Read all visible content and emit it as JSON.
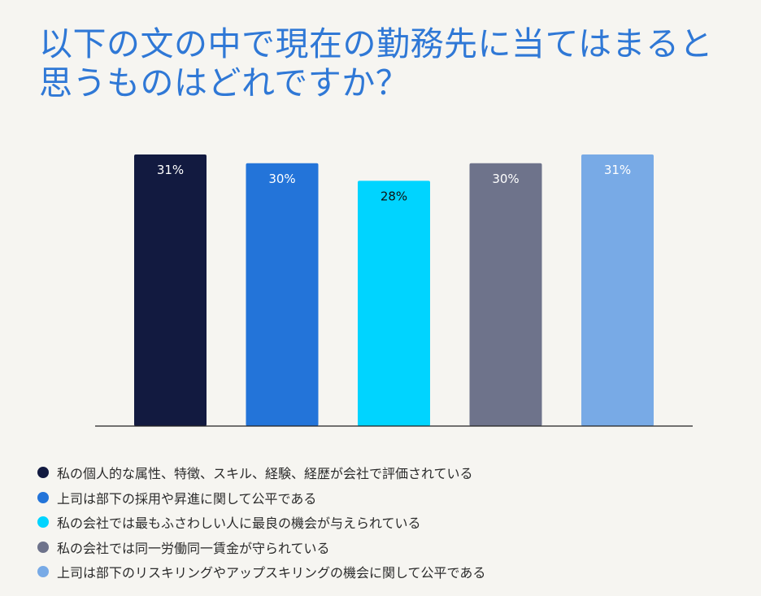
{
  "chart_data": {
    "type": "bar",
    "title": "以下の文の中で現在の勤務先に当てはまると思うものはどれですか？",
    "title_lines": [
      "以下の文の中で現在の勤務先に当てはまると",
      "思うものはどれですか？"
    ],
    "categories": [
      "私の個人的な属性、特徴、スキル、経験、経歴が会社で評価されている",
      "上司は部下の採用や昇進に関して公平である",
      "私の会社では最もふさわしい人に最良の機会が与えられている",
      "私の会社では同一労働同一賃金が守られている",
      "上司は部下のリスキリングやアップスキリングの機会に関して公平である"
    ],
    "values": [
      31,
      30,
      28,
      30,
      31
    ],
    "value_labels": [
      "31%",
      "30%",
      "28%",
      "30%",
      "31%"
    ],
    "colors": [
      "#121A40",
      "#2374D9",
      "#00D4FF",
      "#6E738B",
      "#78AAE6"
    ],
    "label_colors": [
      "#FFFFFF",
      "#FFFFFF",
      "#111111",
      "#FFFFFF",
      "#FFFFFF"
    ],
    "title_color": "#2F78D6",
    "ylim": [
      0,
      31
    ],
    "grid": false,
    "legend_position": "bottom"
  }
}
